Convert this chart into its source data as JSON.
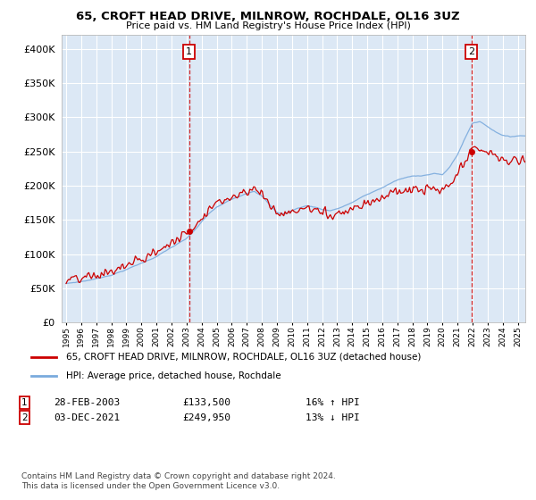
{
  "title": "65, CROFT HEAD DRIVE, MILNROW, ROCHDALE, OL16 3UZ",
  "subtitle": "Price paid vs. HM Land Registry's House Price Index (HPI)",
  "legend_line1": "65, CROFT HEAD DRIVE, MILNROW, ROCHDALE, OL16 3UZ (detached house)",
  "legend_line2": "HPI: Average price, detached house, Rochdale",
  "annotation1_date": "28-FEB-2003",
  "annotation1_price": "£133,500",
  "annotation1_hpi": "16% ↑ HPI",
  "annotation2_date": "03-DEC-2021",
  "annotation2_price": "£249,950",
  "annotation2_hpi": "13% ↓ HPI",
  "footer": "Contains HM Land Registry data © Crown copyright and database right 2024.\nThis data is licensed under the Open Government Licence v3.0.",
  "red_color": "#cc0000",
  "blue_color": "#7aaadd",
  "bg_color": "#dce8f5",
  "grid_color": "#ffffff",
  "ylim": [
    0,
    420000
  ],
  "yticks": [
    0,
    50000,
    100000,
    150000,
    200000,
    250000,
    300000,
    350000,
    400000
  ],
  "sale1_year": 2003.16,
  "sale1_price": 133500,
  "sale2_year": 2021.92,
  "sale2_price": 249950
}
